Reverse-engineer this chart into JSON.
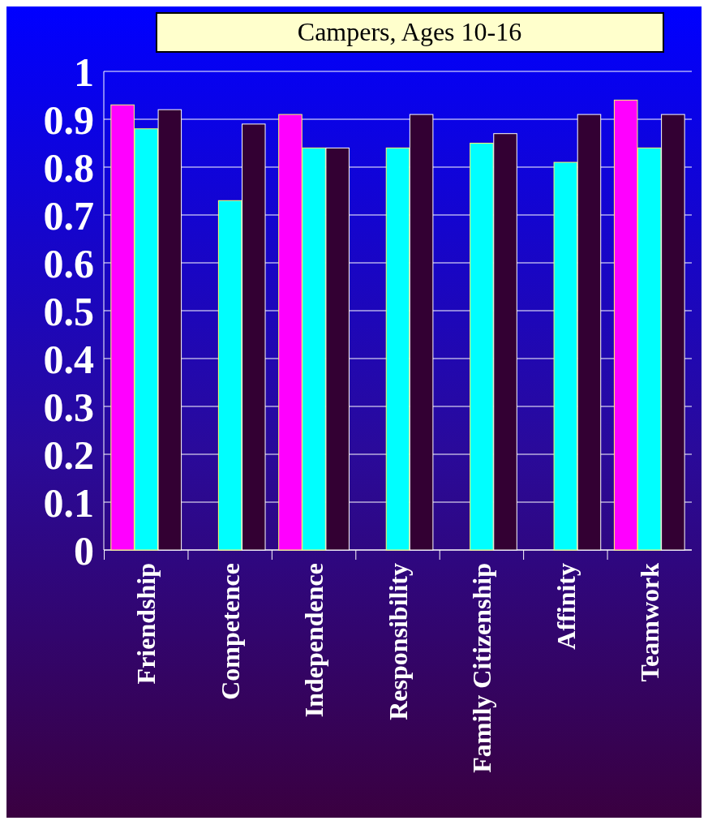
{
  "chart_data": {
    "type": "bar",
    "title": "Campers, Ages 10-16",
    "categories": [
      "Friendship",
      "Competence",
      "Independence",
      "Responsibility",
      "Family Citizenship",
      "Affinity",
      "Teamwork"
    ],
    "series": [
      {
        "color": "#ff00ff",
        "values": [
          0.93,
          null,
          0.91,
          null,
          null,
          null,
          0.94
        ]
      },
      {
        "color": "#00ffff",
        "values": [
          0.88,
          0.73,
          0.84,
          0.84,
          0.85,
          0.81,
          0.84
        ]
      },
      {
        "color": "#330033",
        "values": [
          0.92,
          0.89,
          0.84,
          0.91,
          0.87,
          0.91,
          0.91
        ]
      }
    ],
    "ylim": [
      0,
      1
    ],
    "yticks": [
      0,
      0.1,
      0.2,
      0.3,
      0.4,
      0.5,
      0.6,
      0.7,
      0.8,
      0.9,
      1
    ],
    "grid": "y"
  }
}
